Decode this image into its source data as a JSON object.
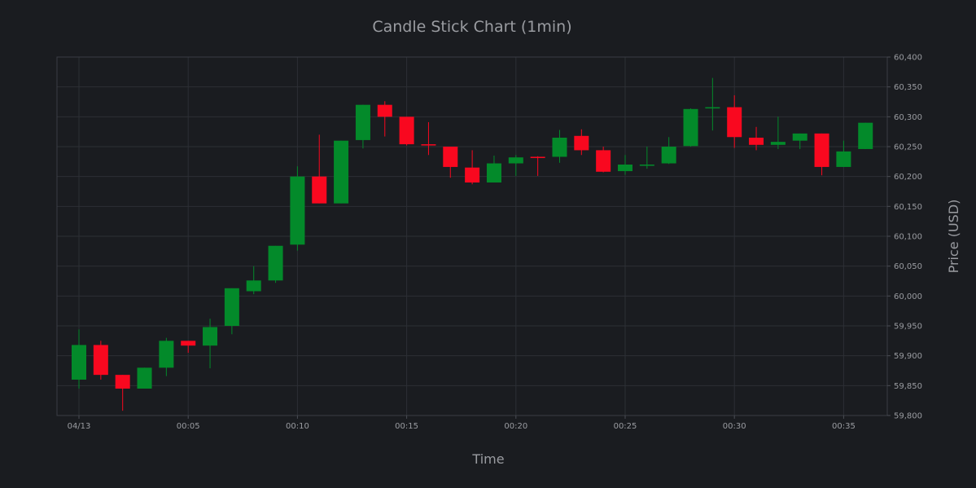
{
  "chart_data": {
    "type": "candlestick",
    "title": "Candle Stick Chart (1min)",
    "xlabel": "Time",
    "ylabel": "Price (USD)",
    "ylim": [
      59800,
      60400
    ],
    "y_ticks": [
      "59,800",
      "59,850",
      "59,900",
      "59,950",
      "60,000",
      "60,050",
      "60,100",
      "60,150",
      "60,200",
      "60,250",
      "60,300",
      "60,350",
      "60,400"
    ],
    "y_tick_values": [
      59800,
      59850,
      59900,
      59950,
      60000,
      60050,
      60100,
      60150,
      60200,
      60250,
      60300,
      60350,
      60400
    ],
    "x_ticks": [
      "04/13",
      "00:05",
      "00:10",
      "00:15",
      "00:20",
      "00:25",
      "00:30",
      "00:35"
    ],
    "x_tick_minutes": [
      0,
      5,
      10,
      15,
      20,
      25,
      30,
      35
    ],
    "grid": true,
    "increasing_color": "#038a2a",
    "decreasing_color": "#f9081f",
    "candles": [
      {
        "t": 0,
        "open": 59860,
        "high": 59944,
        "low": 59845,
        "close": 59918
      },
      {
        "t": 1,
        "open": 59918,
        "high": 59925,
        "low": 59860,
        "close": 59868
      },
      {
        "t": 2,
        "open": 59868,
        "high": 59868,
        "low": 59808,
        "close": 59845
      },
      {
        "t": 3,
        "open": 59845,
        "high": 59880,
        "low": 59845,
        "close": 59880
      },
      {
        "t": 4,
        "open": 59880,
        "high": 59930,
        "low": 59866,
        "close": 59925
      },
      {
        "t": 5,
        "open": 59925,
        "high": 59925,
        "low": 59905,
        "close": 59917
      },
      {
        "t": 6,
        "open": 59917,
        "high": 59962,
        "low": 59879,
        "close": 59948
      },
      {
        "t": 7,
        "open": 59950,
        "high": 60013,
        "low": 59936,
        "close": 60013
      },
      {
        "t": 8,
        "open": 60008,
        "high": 60050,
        "low": 60003,
        "close": 60026
      },
      {
        "t": 9,
        "open": 60026,
        "high": 60084,
        "low": 60022,
        "close": 60084
      },
      {
        "t": 10,
        "open": 60086,
        "high": 60217,
        "low": 60076,
        "close": 60200
      },
      {
        "t": 11,
        "open": 60200,
        "high": 60270,
        "low": 60155,
        "close": 60155
      },
      {
        "t": 12,
        "open": 60155,
        "high": 60260,
        "low": 60155,
        "close": 60260
      },
      {
        "t": 13,
        "open": 60261,
        "high": 60320,
        "low": 60247,
        "close": 60320
      },
      {
        "t": 14,
        "open": 60320,
        "high": 60326,
        "low": 60267,
        "close": 60300
      },
      {
        "t": 15,
        "open": 60300,
        "high": 60300,
        "low": 60252,
        "close": 60254
      },
      {
        "t": 16,
        "open": 60254,
        "high": 60291,
        "low": 60236,
        "close": 60252
      },
      {
        "t": 17,
        "open": 60250,
        "high": 60250,
        "low": 60198,
        "close": 60216
      },
      {
        "t": 18,
        "open": 60215,
        "high": 60244,
        "low": 60187,
        "close": 60190
      },
      {
        "t": 19,
        "open": 60190,
        "high": 60235,
        "low": 60190,
        "close": 60222
      },
      {
        "t": 20,
        "open": 60222,
        "high": 60236,
        "low": 60201,
        "close": 60232
      },
      {
        "t": 21,
        "open": 60233,
        "high": 60234,
        "low": 60201,
        "close": 60232
      },
      {
        "t": 22,
        "open": 60233,
        "high": 60278,
        "low": 60223,
        "close": 60265
      },
      {
        "t": 23,
        "open": 60268,
        "high": 60279,
        "low": 60236,
        "close": 60244
      },
      {
        "t": 24,
        "open": 60244,
        "high": 60250,
        "low": 60207,
        "close": 60208
      },
      {
        "t": 25,
        "open": 60209,
        "high": 60236,
        "low": 60203,
        "close": 60220
      },
      {
        "t": 26,
        "open": 60220,
        "high": 60250,
        "low": 60213,
        "close": 60220
      },
      {
        "t": 27,
        "open": 60222,
        "high": 60266,
        "low": 60221,
        "close": 60250
      },
      {
        "t": 28,
        "open": 60251,
        "high": 60314,
        "low": 60250,
        "close": 60313
      },
      {
        "t": 29,
        "open": 60314,
        "high": 60365,
        "low": 60277,
        "close": 60316
      },
      {
        "t": 30,
        "open": 60316,
        "high": 60336,
        "low": 60248,
        "close": 60266
      },
      {
        "t": 31,
        "open": 60265,
        "high": 60283,
        "low": 60244,
        "close": 60253
      },
      {
        "t": 32,
        "open": 60253,
        "high": 60300,
        "low": 60246,
        "close": 60258
      },
      {
        "t": 33,
        "open": 60260,
        "high": 60272,
        "low": 60246,
        "close": 60272
      },
      {
        "t": 34,
        "open": 60272,
        "high": 60272,
        "low": 60202,
        "close": 60216
      },
      {
        "t": 35,
        "open": 60216,
        "high": 60260,
        "low": 60216,
        "close": 60242
      },
      {
        "t": 36,
        "open": 60246,
        "high": 60290,
        "low": 60246,
        "close": 60290
      }
    ]
  }
}
